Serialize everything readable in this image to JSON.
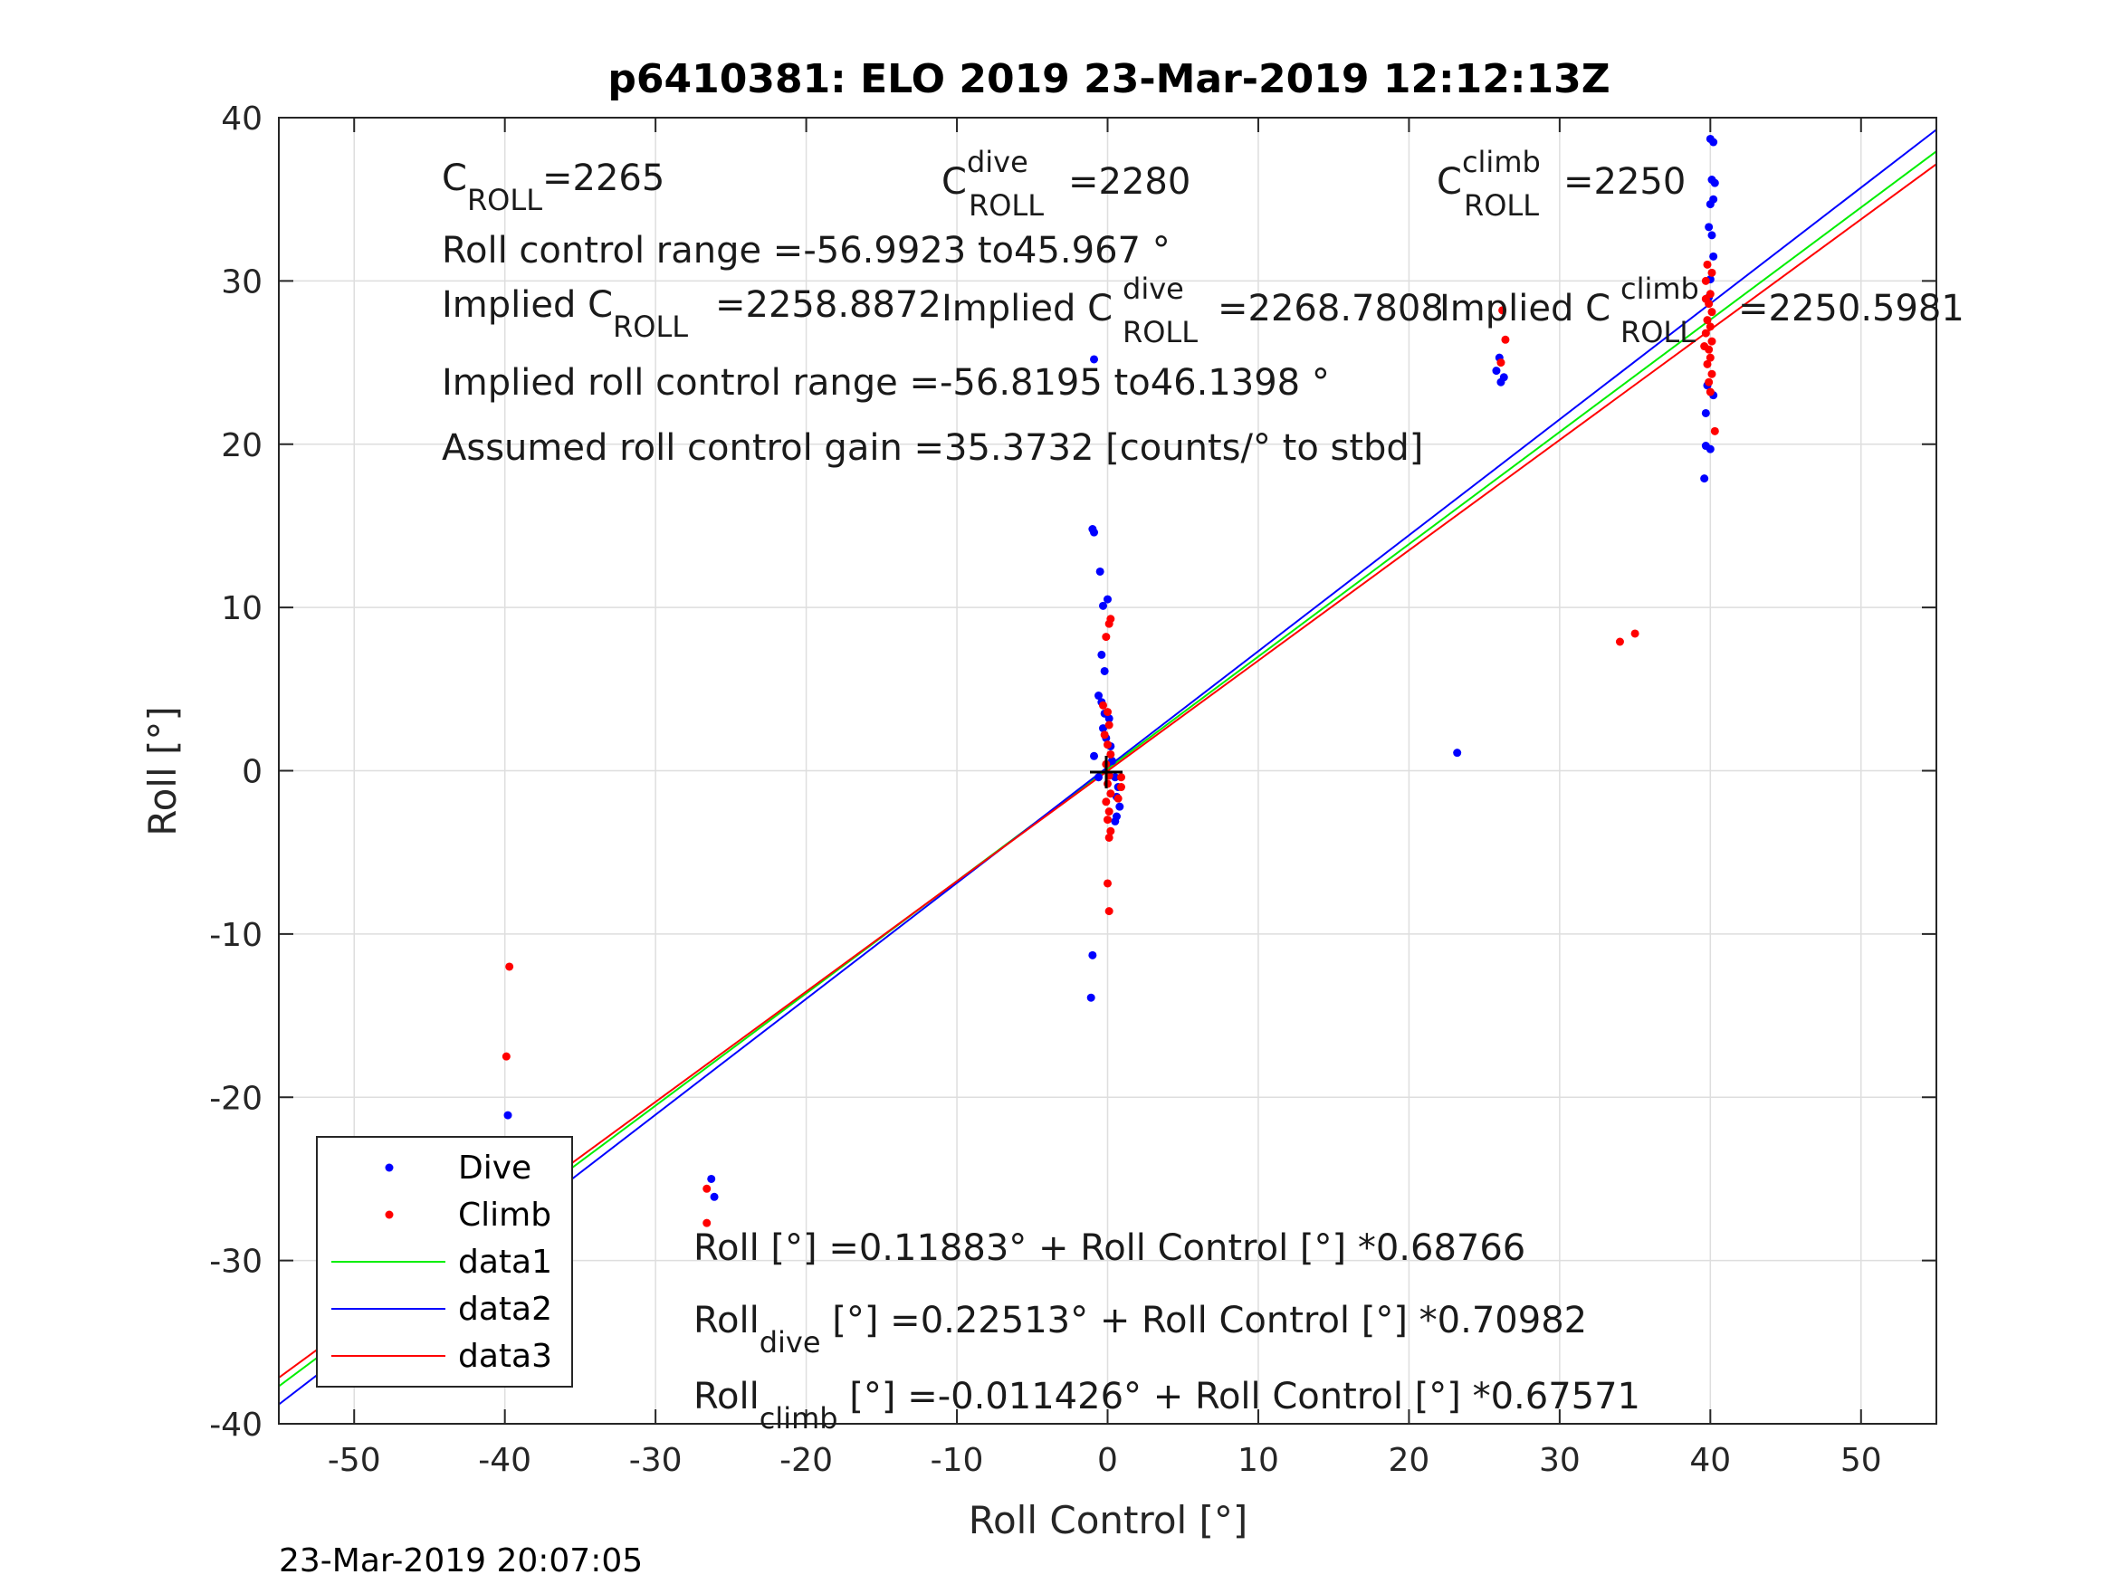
{
  "chart_data": {
    "type": "scatter",
    "title": "p6410381: ELO 2019 23-Mar-2019 12:12:13Z",
    "xlabel": "Roll Control [°]",
    "ylabel": "Roll [°]",
    "xlim": [
      -55,
      55
    ],
    "ylim": [
      -40,
      40
    ],
    "xticks": [
      -50,
      -40,
      -30,
      -20,
      -10,
      0,
      10,
      20,
      30,
      40,
      50
    ],
    "yticks": [
      -40,
      -30,
      -20,
      -10,
      0,
      10,
      20,
      30,
      40
    ],
    "grid": true,
    "legend_position": "bottom-left",
    "colors": {
      "dive": "#0000ff",
      "climb": "#ff0000",
      "data1": "#00ee00",
      "data2": "#0000ff",
      "data3": "#ff0000"
    },
    "series": [
      {
        "name": "Dive",
        "kind": "points",
        "points": [
          [
            -39.8,
            -21.1
          ],
          [
            -39.9,
            -26.8
          ],
          [
            -39.6,
            -27.3
          ],
          [
            -39.4,
            -27.8
          ],
          [
            -39.7,
            -28.3
          ],
          [
            -40.0,
            -27.0
          ],
          [
            -26.3,
            -25.0
          ],
          [
            -26.1,
            -26.1
          ],
          [
            -1.0,
            14.8
          ],
          [
            -0.9,
            14.6
          ],
          [
            -0.5,
            12.2
          ],
          [
            -0.3,
            10.1
          ],
          [
            0.0,
            10.5
          ],
          [
            -0.4,
            7.1
          ],
          [
            -0.2,
            6.1
          ],
          [
            -0.6,
            4.6
          ],
          [
            -0.4,
            4.2
          ],
          [
            -0.2,
            3.5
          ],
          [
            0.1,
            3.2
          ],
          [
            -0.3,
            2.6
          ],
          [
            -0.1,
            2.0
          ],
          [
            0.2,
            1.5
          ],
          [
            -0.9,
            0.9
          ],
          [
            0.3,
            0.6
          ],
          [
            0.5,
            -0.4
          ],
          [
            0.7,
            -1.0
          ],
          [
            0.6,
            -1.6
          ],
          [
            0.8,
            -2.2
          ],
          [
            0.6,
            -2.8
          ],
          [
            0.5,
            -3.1
          ],
          [
            -0.6,
            -0.4
          ],
          [
            -1.0,
            -11.3
          ],
          [
            -1.1,
            -13.9
          ],
          [
            -0.9,
            25.2
          ],
          [
            23.2,
            1.1
          ],
          [
            25.8,
            24.5
          ],
          [
            26.0,
            25.3
          ],
          [
            26.1,
            23.8
          ],
          [
            26.3,
            24.1
          ],
          [
            39.6,
            17.9
          ],
          [
            39.7,
            19.9
          ],
          [
            40.0,
            19.7
          ],
          [
            39.7,
            21.9
          ],
          [
            40.0,
            38.7
          ],
          [
            40.2,
            38.5
          ],
          [
            40.1,
            36.2
          ],
          [
            40.3,
            36.0
          ],
          [
            40.2,
            35.0
          ],
          [
            40.0,
            34.7
          ],
          [
            39.9,
            33.3
          ],
          [
            40.1,
            32.8
          ],
          [
            40.2,
            31.5
          ],
          [
            40.0,
            30.1
          ],
          [
            39.9,
            29.0
          ],
          [
            40.2,
            23.0
          ],
          [
            39.8,
            23.6
          ]
        ]
      },
      {
        "name": "Climb",
        "kind": "points",
        "points": [
          [
            -39.7,
            -12.0
          ],
          [
            -39.9,
            -17.5
          ],
          [
            -40.2,
            -25.2
          ],
          [
            -40.1,
            -26.5
          ],
          [
            -39.9,
            -27.1
          ],
          [
            -39.7,
            -27.6
          ],
          [
            -39.8,
            -28.4
          ],
          [
            -39.6,
            -28.9
          ],
          [
            -40.0,
            -29.4
          ],
          [
            -40.3,
            -30.1
          ],
          [
            -39.5,
            -28.0
          ],
          [
            -26.6,
            -25.6
          ],
          [
            -26.6,
            -27.7
          ],
          [
            0.2,
            9.3
          ],
          [
            0.1,
            9.0
          ],
          [
            -0.1,
            8.2
          ],
          [
            -0.3,
            4.0
          ],
          [
            0.0,
            3.6
          ],
          [
            0.1,
            2.8
          ],
          [
            -0.2,
            2.2
          ],
          [
            0.0,
            1.6
          ],
          [
            0.2,
            1.0
          ],
          [
            -0.1,
            0.4
          ],
          [
            0.1,
            -0.3
          ],
          [
            0.0,
            -0.8
          ],
          [
            0.2,
            -1.4
          ],
          [
            -0.1,
            -1.9
          ],
          [
            0.1,
            -2.5
          ],
          [
            0.0,
            -3.0
          ],
          [
            0.2,
            -3.7
          ],
          [
            0.1,
            -4.1
          ],
          [
            0.0,
            -6.9
          ],
          [
            0.1,
            -8.6
          ],
          [
            0.9,
            -1.0
          ],
          [
            0.7,
            -1.7
          ],
          [
            0.9,
            -0.4
          ],
          [
            26.2,
            28.2
          ],
          [
            26.4,
            26.4
          ],
          [
            26.1,
            25.0
          ],
          [
            34.0,
            7.9
          ],
          [
            35.0,
            8.4
          ],
          [
            39.8,
            31.0
          ],
          [
            40.1,
            30.5
          ],
          [
            39.7,
            30.0
          ],
          [
            40.0,
            29.2
          ],
          [
            39.9,
            28.6
          ],
          [
            40.1,
            28.1
          ],
          [
            39.8,
            27.6
          ],
          [
            40.0,
            27.2
          ],
          [
            39.7,
            26.8
          ],
          [
            40.1,
            26.3
          ],
          [
            39.9,
            25.8
          ],
          [
            40.0,
            25.3
          ],
          [
            39.8,
            24.9
          ],
          [
            40.1,
            24.3
          ],
          [
            39.9,
            23.8
          ],
          [
            40.0,
            23.2
          ],
          [
            40.3,
            20.8
          ],
          [
            39.6,
            26.0
          ],
          [
            39.7,
            28.9
          ]
        ]
      },
      {
        "name": "data1",
        "kind": "line",
        "intercept": 0.11883,
        "slope": 0.68766
      },
      {
        "name": "data2",
        "kind": "line",
        "intercept": 0.22513,
        "slope": 0.70982
      },
      {
        "name": "data3",
        "kind": "line",
        "intercept": -0.011426,
        "slope": 0.67571
      }
    ]
  },
  "annotations": {
    "c_roll": {
      "base": "C",
      "sub": "ROLL",
      "value": "=2265"
    },
    "c_roll_dive": {
      "base": "C",
      "sup": "dive",
      "sub": "ROLL",
      "value": "=2280"
    },
    "c_roll_climb": {
      "base": "C",
      "sup": "climb",
      "sub": "ROLL",
      "value": "=2250"
    },
    "roll_control_range": "Roll control range =-56.9923 to45.967 °",
    "implied_c_roll": {
      "prefix": "Implied C",
      "sub": "ROLL",
      "value": "=2258.8872"
    },
    "implied_c_roll_dive": {
      "prefix": "Implied C",
      "sup": "dive",
      "sub": "ROLL",
      "value": "=2268.7808"
    },
    "implied_c_roll_climb": {
      "prefix": "Implied C",
      "sup": "climb",
      "sub": "ROLL",
      "value": "=2250.5981"
    },
    "implied_roll_control_range": "Implied roll control range =-56.8195 to46.1398 °",
    "assumed_gain": "Assumed roll control gain =35.3732 [counts/° to stbd]",
    "fit_all": "Roll [°] =0.11883° + Roll Control [°] *0.68766",
    "fit_dive": {
      "prefix": "Roll",
      "sub": "dive",
      "rest": " [°] =0.22513° + Roll Control [°] *0.70982"
    },
    "fit_climb": {
      "prefix": "Roll",
      "sub": "climb",
      "rest": " [°] =-0.011426° + Roll Control [°] *0.67571"
    }
  },
  "legend": {
    "items": [
      "Dive",
      "Climb",
      "data1",
      "data2",
      "data3"
    ]
  },
  "timestamp": "23-Mar-2019 20:07:05"
}
